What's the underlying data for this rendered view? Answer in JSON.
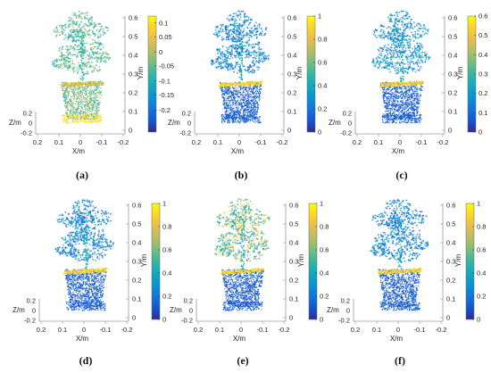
{
  "chart_data": [
    {
      "panel": "(a)",
      "type": "scatter",
      "cmap": "deviation",
      "colorbar_ticks": [
        "0.1",
        "0.05",
        "0",
        "-0.05",
        "-0.1",
        "-0.15",
        "-0.2"
      ],
      "y_ticks": [
        "0.6",
        "0.5",
        "0.4",
        "0.3",
        "0.2",
        "0.1",
        "0"
      ],
      "x_ticks": [
        "0.2",
        "0.1",
        "0",
        "-0.1",
        "-0.2"
      ],
      "z_ticks": [
        "0.2",
        "0",
        "-0.2"
      ],
      "ylabel": "Y/m",
      "xlabel": "X/m",
      "zlabel": "Z/m",
      "colorbar_range": [
        -0.25,
        0.15
      ]
    },
    {
      "panel": "(b)",
      "type": "scatter",
      "cmap": "parula",
      "colorbar_ticks": [
        "1",
        "0.8",
        "0.6",
        "0.4",
        "0.2",
        "0"
      ],
      "y_ticks": [
        "0.6",
        "0.5",
        "0.4",
        "0.3",
        "0.2",
        "0.1",
        "0"
      ],
      "x_ticks": [
        "0.2",
        "0.1",
        "0",
        "-0.1",
        "-0.2"
      ],
      "z_ticks": [
        "0.2",
        "0",
        "-0.2"
      ],
      "ylabel": "Y/m",
      "xlabel": "X/m",
      "zlabel": "Z/m",
      "colorbar_range": [
        0,
        1
      ]
    },
    {
      "panel": "(c)",
      "type": "scatter",
      "cmap": "parula",
      "colorbar_ticks": [
        "0.6",
        "0.5",
        "0.4",
        "0.3",
        "0.2",
        "0.1",
        "0"
      ],
      "y_ticks": [
        "0.6",
        "0.5",
        "0.4",
        "0.3",
        "0.2",
        "0.1",
        "0"
      ],
      "x_ticks": [
        "0.2",
        "0.1",
        "0",
        "-0.1",
        "-0.2"
      ],
      "z_ticks": [
        "0.2",
        "0",
        "-0.2"
      ],
      "ylabel": "Y/m",
      "xlabel": "X/m",
      "zlabel": "Z/m",
      "colorbar_range": [
        0,
        0.6
      ]
    },
    {
      "panel": "(d)",
      "type": "scatter",
      "cmap": "parula",
      "colorbar_ticks": [
        "1",
        "0.8",
        "0.6",
        "0.4",
        "0.2",
        "0"
      ],
      "y_ticks": [
        "0.6",
        "0.5",
        "0.4",
        "0.3",
        "0.2",
        "0.1",
        "0"
      ],
      "x_ticks": [
        "0.2",
        "0.1",
        "0",
        "-0.1",
        "-0.2"
      ],
      "z_ticks": [
        "0.2",
        "0",
        "-0.2"
      ],
      "ylabel": "Y/m",
      "xlabel": "X/m",
      "zlabel": "Z/m",
      "colorbar_range": [
        0,
        1
      ]
    },
    {
      "panel": "(e)",
      "type": "scatter",
      "cmap": "parula",
      "colorbar_ticks": [
        "1",
        "0.8",
        "0.6",
        "0.4",
        "0.2",
        "0"
      ],
      "y_ticks": [
        "0.6",
        "0.5",
        "0.4",
        "0.3",
        "0.2",
        "0.1",
        "0"
      ],
      "x_ticks": [
        "0.2",
        "0.1",
        "0",
        "-0.1",
        "-0.2"
      ],
      "z_ticks": [
        "0.2",
        "0",
        "-0.2"
      ],
      "ylabel": "Y/m",
      "xlabel": "X/m",
      "zlabel": "Z/m",
      "colorbar_range": [
        0,
        1
      ]
    },
    {
      "panel": "(f)",
      "type": "scatter",
      "cmap": "parula",
      "colorbar_ticks": [
        "1",
        "0.8",
        "0.6",
        "0.4",
        "0.2",
        "0"
      ],
      "y_ticks": [
        "0.6",
        "0.5",
        "0.4",
        "0.3",
        "0.2",
        "0.1",
        "0"
      ],
      "x_ticks": [
        "0.2",
        "0.1",
        "0",
        "-0.1",
        "-0.2"
      ],
      "z_ticks": [
        "0.2",
        "0",
        "-0.2"
      ],
      "ylabel": "Y/m",
      "xlabel": "X/m",
      "zlabel": "Z/m",
      "colorbar_range": [
        0,
        1
      ]
    }
  ]
}
